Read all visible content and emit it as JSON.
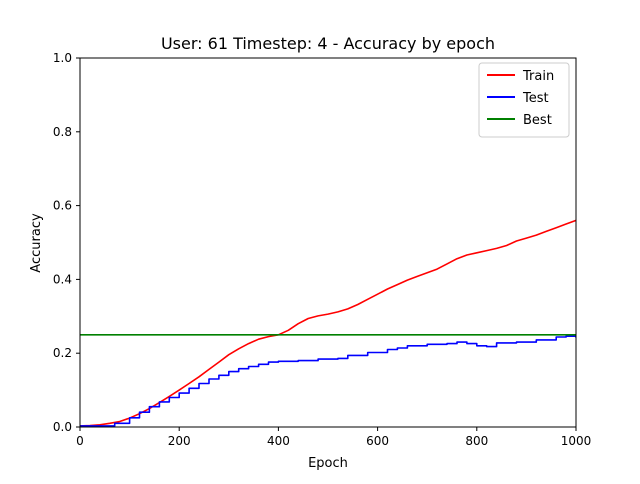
{
  "chart_data": {
    "type": "line",
    "title": "User: 61 Timestep: 4 - Accuracy by epoch",
    "xlabel": "Epoch",
    "ylabel": "Accuracy",
    "xlim": [
      0,
      1000
    ],
    "ylim": [
      0,
      1.0
    ],
    "xticks": [
      0,
      200,
      400,
      600,
      800,
      1000
    ],
    "xtick_labels": [
      "0",
      "200",
      "400",
      "600",
      "800",
      "1000"
    ],
    "yticks": [
      0.0,
      0.2,
      0.4,
      0.6,
      0.8,
      1.0
    ],
    "ytick_labels": [
      "0.0",
      "0.2",
      "0.4",
      "0.6",
      "0.8",
      "1.0"
    ],
    "grid": false,
    "legend": "top-right",
    "series": [
      {
        "name": "Train",
        "color": "#ff0000",
        "step": false,
        "x": [
          0,
          20,
          40,
          60,
          80,
          100,
          120,
          140,
          160,
          180,
          200,
          220,
          240,
          260,
          280,
          300,
          320,
          340,
          360,
          380,
          400,
          420,
          440,
          460,
          480,
          500,
          520,
          540,
          560,
          580,
          600,
          620,
          640,
          660,
          680,
          700,
          720,
          740,
          760,
          780,
          800,
          820,
          840,
          860,
          880,
          900,
          920,
          940,
          960,
          980,
          1000
        ],
        "values": [
          0.003,
          0.004,
          0.006,
          0.01,
          0.015,
          0.024,
          0.036,
          0.05,
          0.066,
          0.083,
          0.1,
          0.118,
          0.136,
          0.156,
          0.176,
          0.196,
          0.212,
          0.226,
          0.238,
          0.245,
          0.25,
          0.262,
          0.28,
          0.294,
          0.301,
          0.306,
          0.312,
          0.32,
          0.332,
          0.346,
          0.36,
          0.374,
          0.386,
          0.398,
          0.408,
          0.418,
          0.428,
          0.442,
          0.456,
          0.466,
          0.472,
          0.478,
          0.484,
          0.492,
          0.504,
          0.512,
          0.52,
          0.53,
          0.54,
          0.55,
          0.56
        ]
      },
      {
        "name": "Test",
        "color": "#0000ff",
        "step": true,
        "x": [
          0,
          70,
          100,
          120,
          140,
          160,
          180,
          200,
          220,
          240,
          260,
          280,
          300,
          320,
          340,
          360,
          380,
          400,
          440,
          480,
          520,
          540,
          580,
          620,
          640,
          660,
          700,
          740,
          760,
          780,
          800,
          820,
          840,
          880,
          920,
          960,
          980,
          1000
        ],
        "values": [
          0.003,
          0.01,
          0.025,
          0.04,
          0.055,
          0.068,
          0.08,
          0.092,
          0.105,
          0.118,
          0.13,
          0.14,
          0.15,
          0.158,
          0.164,
          0.17,
          0.176,
          0.178,
          0.18,
          0.184,
          0.186,
          0.194,
          0.202,
          0.21,
          0.214,
          0.22,
          0.224,
          0.226,
          0.23,
          0.226,
          0.22,
          0.218,
          0.228,
          0.23,
          0.236,
          0.244,
          0.246,
          0.242
        ]
      },
      {
        "name": "Best",
        "color": "#008000",
        "step": false,
        "x": [
          0,
          1000
        ],
        "values": [
          0.25,
          0.25
        ]
      }
    ]
  }
}
